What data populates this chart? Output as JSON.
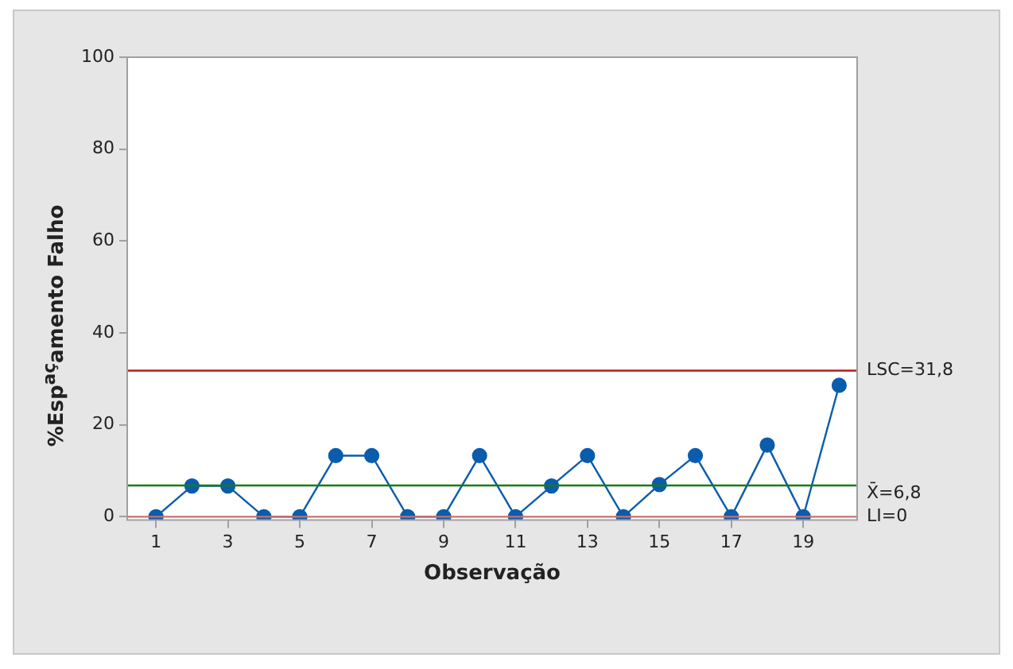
{
  "chart_data": {
    "type": "line",
    "xlabel": "Observação",
    "ylabel": "%Esp$^{aç}$amento Falho",
    "x": [
      1,
      2,
      3,
      4,
      5,
      6,
      7,
      8,
      9,
      10,
      11,
      12,
      13,
      14,
      15,
      16,
      17,
      18,
      19,
      20
    ],
    "series": [
      {
        "color": "#0a5cad",
        "values": [
          0,
          6.7,
          6.7,
          0,
          0,
          13.3,
          13.3,
          0,
          0,
          13.3,
          0,
          6.7,
          13.3,
          0,
          7,
          13.3,
          0,
          15.6,
          0,
          28.6
        ]
      }
    ],
    "xlim": [
      0.2,
      20.5
    ],
    "xticks": [
      1,
      3,
      5,
      7,
      9,
      11,
      13,
      15,
      17,
      19
    ],
    "ylim": [
      -0.7,
      100
    ],
    "yticks": [
      0,
      20,
      40,
      60,
      80,
      100
    ],
    "ref_lines": [
      {
        "axis": "y",
        "value": 31.8,
        "label": "LSC=31,8",
        "color": "#b01c1c"
      },
      {
        "axis": "y",
        "value": 6.8,
        "label": "X̄=6,8",
        "color": "#1a7a1a"
      },
      {
        "axis": "y",
        "value": 0,
        "label": "LI=0",
        "color": "#c87070"
      }
    ],
    "grid": false,
    "legend": false,
    "marker": "circle",
    "line_style": "solid"
  }
}
